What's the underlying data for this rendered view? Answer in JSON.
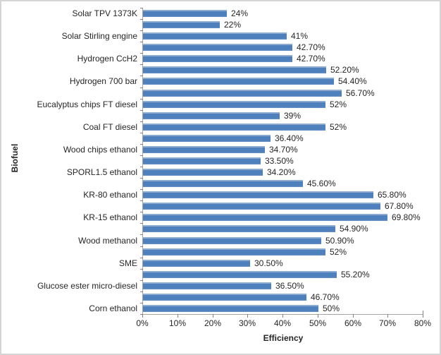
{
  "chart_data": {
    "type": "bar",
    "orientation": "horizontal",
    "title": "",
    "xlabel": "Efficiency",
    "ylabel": "Biofuel",
    "xlim": [
      0,
      80
    ],
    "x_ticks": [
      "0%",
      "10%",
      "20%",
      "30%",
      "40%",
      "50%",
      "60%",
      "70%",
      "80%"
    ],
    "grid": false,
    "legend": false,
    "bar_color": "#4d80bc",
    "bar_edge_color": "#8eabd2",
    "axis_color": "#a3a3a3",
    "text_color": "#262626",
    "rows": [
      {
        "category": "Solar TPV 1373K",
        "value": 24,
        "label": "24%"
      },
      {
        "category": "",
        "value": 22,
        "label": "22%"
      },
      {
        "category": "Solar Stirling engine",
        "value": 41,
        "label": "41%"
      },
      {
        "category": "",
        "value": 42.7,
        "label": "42.70%"
      },
      {
        "category": "Hydrogen CcH2",
        "value": 42.7,
        "label": "42.70%"
      },
      {
        "category": "",
        "value": 52.2,
        "label": "52.20%"
      },
      {
        "category": "Hydrogen 700 bar",
        "value": 54.4,
        "label": "54.40%"
      },
      {
        "category": "",
        "value": 56.7,
        "label": "56.70%"
      },
      {
        "category": "Eucalyptus chips FT diesel",
        "value": 52,
        "label": "52%"
      },
      {
        "category": "",
        "value": 39,
        "label": "39%"
      },
      {
        "category": "Coal FT diesel",
        "value": 52,
        "label": "52%"
      },
      {
        "category": "",
        "value": 36.4,
        "label": "36.40%"
      },
      {
        "category": "Wood chips ethanol",
        "value": 34.7,
        "label": "34.70%"
      },
      {
        "category": "",
        "value": 33.5,
        "label": "33.50%"
      },
      {
        "category": "SPORL1.5 ethanol",
        "value": 34.2,
        "label": "34.20%"
      },
      {
        "category": "",
        "value": 45.6,
        "label": "45.60%"
      },
      {
        "category": "KR-80 ethanol",
        "value": 65.8,
        "label": "65.80%"
      },
      {
        "category": "",
        "value": 67.8,
        "label": "67.80%"
      },
      {
        "category": "KR-15 ethanol",
        "value": 69.8,
        "label": "69.80%"
      },
      {
        "category": "",
        "value": 54.9,
        "label": "54.90%"
      },
      {
        "category": "Wood methanol",
        "value": 50.9,
        "label": "50.90%"
      },
      {
        "category": "",
        "value": 52,
        "label": "52%"
      },
      {
        "category": "SME",
        "value": 30.5,
        "label": "30.50%"
      },
      {
        "category": "",
        "value": 55.2,
        "label": "55.20%"
      },
      {
        "category": "Glucose ester micro-diesel",
        "value": 36.5,
        "label": "36.50%"
      },
      {
        "category": "",
        "value": 46.7,
        "label": "46.70%"
      },
      {
        "category": "Corn ethanol",
        "value": 50,
        "label": "50%"
      }
    ]
  }
}
